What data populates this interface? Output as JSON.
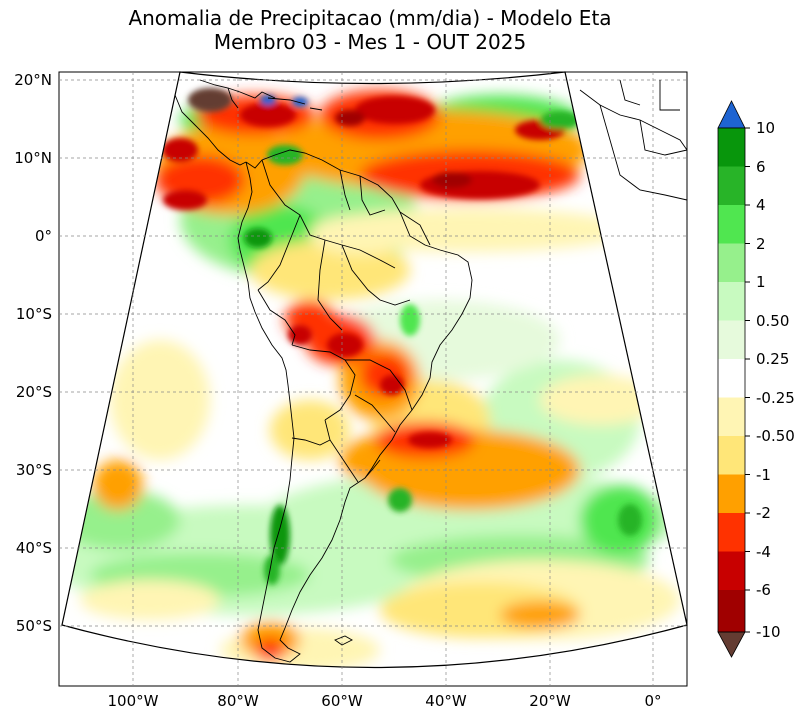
{
  "title": {
    "line1": "Anomalia de Precipitacao (mm/dia) - Modelo Eta",
    "line2": "Membro 03 - Mes 1 - OUT 2025"
  },
  "axes": {
    "lat_labels": [
      "20°N",
      "10°N",
      "0°",
      "10°S",
      "20°S",
      "30°S",
      "40°S",
      "50°S"
    ],
    "lon_labels": [
      "100°W",
      "80°W",
      "60°W",
      "40°W",
      "20°W",
      "0°"
    ]
  },
  "colorbar": {
    "labels": [
      "10",
      "6",
      "4",
      "2",
      "1",
      "0.50",
      "0.25",
      "-0.25",
      "-0.50",
      "-1",
      "-2",
      "-4",
      "-6",
      "-10"
    ],
    "colors": {
      "over": "#1e64d2",
      "gt6": "#08960c",
      "c4_6": "#28b428",
      "c2_4": "#50e650",
      "c1_2": "#96f08c",
      "c05_1": "#c8fac0",
      "c025_05": "#e6fadc",
      "neutral": "#ffffff",
      "n025_05": "#fff5b4",
      "n05_1": "#ffe678",
      "n1_2": "#ffa000",
      "n2_4": "#ff3200",
      "n4_6": "#c80000",
      "n6_10": "#a00000",
      "under": "#643c32"
    }
  }
}
